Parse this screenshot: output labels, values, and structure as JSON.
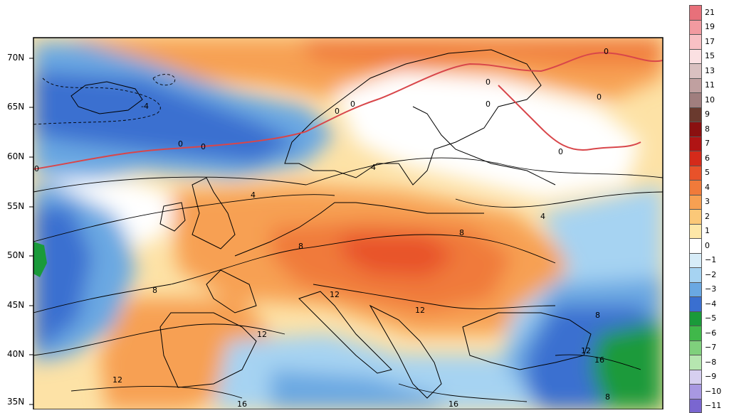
{
  "map": {
    "latitude_labels": [
      "70N",
      "65N",
      "60N",
      "55N",
      "50N",
      "45N",
      "40N",
      "35N"
    ],
    "contour_labels": [
      "0",
      "0",
      "0",
      "0",
      "0",
      "0",
      "0",
      "0",
      "0",
      "0",
      "-4",
      "4",
      "4",
      "4",
      "8",
      "8",
      "8",
      "8",
      "8",
      "12",
      "12",
      "12",
      "12",
      "12",
      "16",
      "16",
      "16"
    ]
  },
  "legend": {
    "levels": [
      {
        "label": "21",
        "color": "#e8707a"
      },
      {
        "label": "19",
        "color": "#f29aa0"
      },
      {
        "label": "17",
        "color": "#f8c0c4"
      },
      {
        "label": "15",
        "color": "#fbe0e2"
      },
      {
        "label": "13",
        "color": "#d9c0c0"
      },
      {
        "label": "11",
        "color": "#c0a0a0"
      },
      {
        "label": "10",
        "color": "#a07e7e"
      },
      {
        "label": "9",
        "color": "#6a3a2e"
      },
      {
        "label": "8",
        "color": "#8a1010"
      },
      {
        "label": "7",
        "color": "#b01414"
      },
      {
        "label": "6",
        "color": "#d42a1a"
      },
      {
        "label": "5",
        "color": "#e8522a"
      },
      {
        "label": "4",
        "color": "#f07a3a"
      },
      {
        "label": "3",
        "color": "#f7a052"
      },
      {
        "label": "2",
        "color": "#fbc878"
      },
      {
        "label": "1",
        "color": "#fde7a8"
      },
      {
        "label": "0",
        "color": "#ffffff"
      },
      {
        "label": "−1",
        "color": "#d7ecf8"
      },
      {
        "label": "−2",
        "color": "#a6d3f2"
      },
      {
        "label": "−3",
        "color": "#6aa8e2"
      },
      {
        "label": "−4",
        "color": "#3a6fd0"
      },
      {
        "label": "−5",
        "color": "#1a9a3a"
      },
      {
        "label": "−6",
        "color": "#40b84a"
      },
      {
        "label": "−7",
        "color": "#7fd07c"
      },
      {
        "label": "−8",
        "color": "#b6e6b0"
      },
      {
        "label": "−9",
        "color": "#d6cff0"
      },
      {
        "label": "−10",
        "color": "#a898e2"
      },
      {
        "label": "−11",
        "color": "#7a66d0"
      }
    ]
  }
}
